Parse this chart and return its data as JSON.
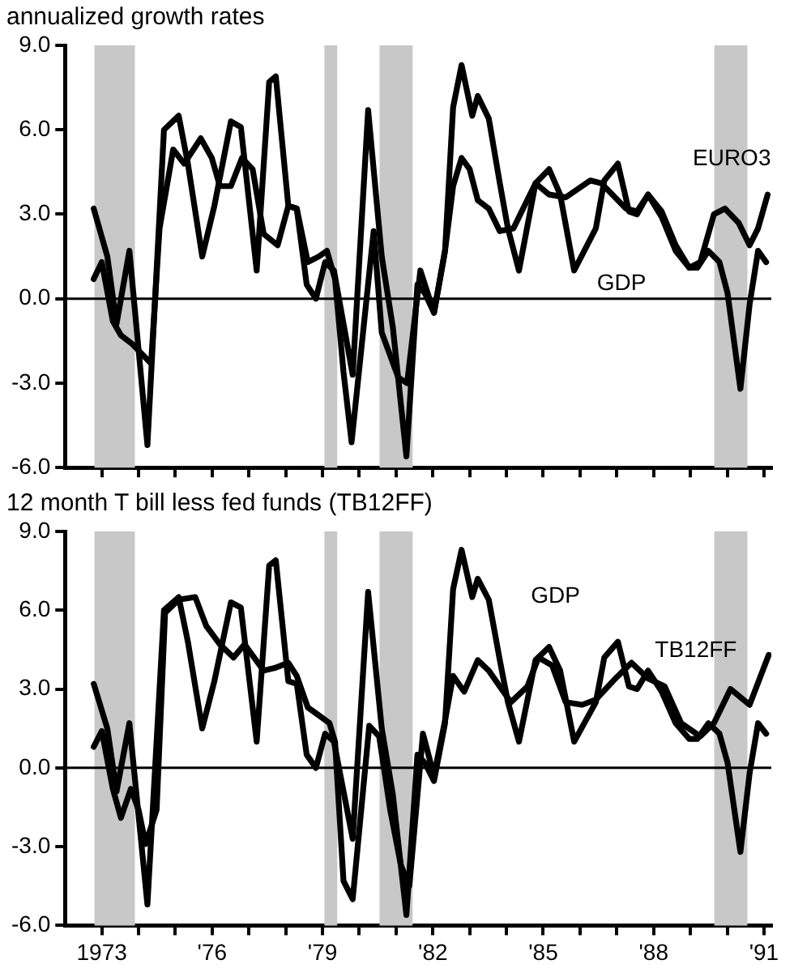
{
  "chart_data": [
    {
      "type": "line",
      "title": "annualized growth rates",
      "xlim": [
        1972,
        1991.2
      ],
      "ylim": [
        -6,
        9
      ],
      "xticks": [
        1973,
        1974,
        1975,
        1976,
        1977,
        1978,
        1979,
        1980,
        1981,
        1982,
        1983,
        1984,
        1985,
        1986,
        1987,
        1988,
        1989,
        1990,
        1991
      ],
      "yticks": [
        {
          "value": -6,
          "label": "-6.0"
        },
        {
          "value": -3,
          "label": "-3.0"
        },
        {
          "value": 0,
          "label": "0.0"
        },
        {
          "value": 3,
          "label": "3.0"
        },
        {
          "value": 6,
          "label": "6.0"
        },
        {
          "value": 9,
          "label": "9.0"
        }
      ],
      "tick_labels": "y",
      "ref_lines": [
        {
          "axis": "y",
          "value": 0,
          "color": "#000000"
        }
      ],
      "bands": [
        {
          "axis": "x",
          "from": 1972.8,
          "to": 1973.9,
          "color": "#c8c8c8"
        },
        {
          "axis": "x",
          "from": 1979.05,
          "to": 1979.4,
          "color": "#c8c8c8"
        },
        {
          "axis": "x",
          "from": 1980.55,
          "to": 1981.45,
          "color": "#c8c8c8"
        },
        {
          "axis": "x",
          "from": 1989.65,
          "to": 1990.55,
          "color": "#c8c8c8"
        }
      ],
      "series": [
        {
          "name": "GDP",
          "color": "#000000",
          "x": [
            1972.78,
            1973.15,
            1973.4,
            1973.75,
            1974.24,
            1974.69,
            1975.09,
            1975.34,
            1975.73,
            1976.06,
            1976.51,
            1976.78,
            1977.21,
            1977.55,
            1977.73,
            1978.07,
            1978.3,
            1978.57,
            1978.82,
            1979.07,
            1979.31,
            1979.82,
            1980.24,
            1980.61,
            1980.91,
            1981.28,
            1981.58,
            1981.78,
            1982.03,
            1982.33,
            1982.55,
            1982.78,
            1983.07,
            1983.22,
            1983.52,
            1983.82,
            1984.04,
            1984.34,
            1984.79,
            1985.16,
            1985.46,
            1985.84,
            1986.43,
            1986.66,
            1987.03,
            1987.33,
            1987.55,
            1987.85,
            1988.22,
            1988.6,
            1988.97,
            1989.19,
            1989.49,
            1989.79,
            1990.01,
            1990.36,
            1990.61,
            1990.84,
            1991.06
          ],
          "values": [
            3.2,
            1.5,
            -0.9,
            1.7,
            -5.2,
            6.0,
            6.5,
            4.8,
            1.5,
            3.3,
            6.3,
            6.1,
            1.0,
            7.7,
            7.9,
            3.3,
            3.2,
            0.5,
            0.0,
            1.3,
            1.0,
            -2.7,
            6.7,
            1.5,
            -1.0,
            -5.6,
            0.5,
            0.2,
            -0.5,
            1.7,
            6.8,
            8.3,
            6.5,
            7.2,
            6.4,
            4.1,
            2.5,
            1.0,
            4.1,
            4.6,
            3.7,
            1.0,
            2.5,
            4.2,
            4.8,
            3.1,
            3.0,
            3.7,
            2.9,
            1.7,
            1.1,
            1.1,
            1.7,
            1.3,
            0.2,
            -3.2,
            -0.2,
            1.7,
            1.3
          ]
        },
        {
          "name": "EURO3",
          "color": "#000000",
          "x": [
            1972.78,
            1973.0,
            1973.3,
            1973.52,
            1973.82,
            1974.34,
            1974.57,
            1974.94,
            1975.24,
            1975.69,
            1975.99,
            1976.21,
            1976.51,
            1976.81,
            1977.1,
            1977.4,
            1977.78,
            1978.07,
            1978.3,
            1978.6,
            1978.9,
            1979.12,
            1979.34,
            1979.57,
            1979.79,
            1980.39,
            1980.61,
            1981.06,
            1981.3,
            1981.66,
            1982.03,
            1982.33,
            1982.55,
            1982.78,
            1983.0,
            1983.22,
            1983.52,
            1983.82,
            1984.19,
            1984.79,
            1985.16,
            1985.61,
            1986.28,
            1986.58,
            1987.25,
            1987.55,
            1987.85,
            1988.22,
            1988.6,
            1988.97,
            1989.27,
            1989.64,
            1989.94,
            1990.31,
            1990.61,
            1990.84,
            1991.1
          ],
          "values": [
            0.7,
            1.3,
            -0.8,
            -1.3,
            -1.6,
            -2.3,
            2.5,
            5.3,
            4.8,
            5.7,
            5.0,
            4.0,
            4.0,
            5.0,
            4.6,
            2.3,
            1.9,
            3.3,
            3.2,
            1.3,
            1.5,
            1.7,
            0.7,
            -2.6,
            -5.1,
            2.4,
            -1.2,
            -2.8,
            -3.0,
            1.0,
            -0.5,
            1.7,
            4.0,
            5.0,
            4.6,
            3.5,
            3.2,
            2.4,
            2.5,
            4.1,
            3.7,
            3.6,
            4.2,
            4.1,
            3.2,
            3.1,
            3.7,
            3.1,
            1.9,
            1.1,
            1.3,
            3.0,
            3.2,
            2.7,
            1.9,
            2.5,
            3.7
          ]
        }
      ]
    },
    {
      "type": "line",
      "title": "12 month T bill less fed funds (TB12FF)",
      "xlim": [
        1972,
        1991.2
      ],
      "ylim": [
        -6,
        9
      ],
      "xticks": [
        1973,
        {
          "value": 1974,
          "label": null
        },
        {
          "value": 1975,
          "label": null
        },
        {
          "value": 1976,
          "label": "'76"
        },
        {
          "value": 1977,
          "label": null
        },
        {
          "value": 1978,
          "label": null
        },
        {
          "value": 1979,
          "label": "'79"
        },
        {
          "value": 1980,
          "label": null
        },
        {
          "value": 1981,
          "label": null
        },
        {
          "value": 1982,
          "label": "'82"
        },
        {
          "value": 1983,
          "label": null
        },
        {
          "value": 1984,
          "label": null
        },
        {
          "value": 1985,
          "label": "'85"
        },
        {
          "value": 1986,
          "label": null
        },
        {
          "value": 1987,
          "label": null
        },
        {
          "value": 1988,
          "label": "'88"
        },
        {
          "value": 1989,
          "label": null
        },
        {
          "value": 1990,
          "label": null
        },
        {
          "value": 1991,
          "label": "'91"
        }
      ],
      "yticks": [
        {
          "value": -6,
          "label": "-6.0"
        },
        {
          "value": -3,
          "label": "-3.0"
        },
        {
          "value": 0,
          "label": "0.0"
        },
        {
          "value": 3,
          "label": "3.0"
        },
        {
          "value": 6,
          "label": "6.0"
        },
        {
          "value": 9,
          "label": "9.0"
        }
      ],
      "ref_lines": [
        {
          "axis": "y",
          "value": 0,
          "color": "#000000"
        }
      ],
      "bands": [
        {
          "axis": "x",
          "from": 1972.8,
          "to": 1973.9,
          "color": "#c8c8c8"
        },
        {
          "axis": "x",
          "from": 1979.05,
          "to": 1979.4,
          "color": "#c8c8c8"
        },
        {
          "axis": "x",
          "from": 1980.55,
          "to": 1981.45,
          "color": "#c8c8c8"
        },
        {
          "axis": "x",
          "from": 1989.65,
          "to": 1990.55,
          "color": "#c8c8c8"
        }
      ],
      "series": [
        {
          "name": "GDP",
          "color": "#000000",
          "x": [
            1972.78,
            1973.15,
            1973.4,
            1973.75,
            1974.24,
            1974.69,
            1975.09,
            1975.34,
            1975.73,
            1976.06,
            1976.51,
            1976.78,
            1977.21,
            1977.55,
            1977.73,
            1978.07,
            1978.3,
            1978.57,
            1978.82,
            1979.07,
            1979.31,
            1979.82,
            1980.24,
            1980.61,
            1980.91,
            1981.28,
            1981.58,
            1981.78,
            1982.03,
            1982.33,
            1982.55,
            1982.78,
            1983.07,
            1983.22,
            1983.52,
            1983.82,
            1984.04,
            1984.34,
            1984.79,
            1985.16,
            1985.46,
            1985.84,
            1986.43,
            1986.66,
            1987.03,
            1987.33,
            1987.55,
            1987.85,
            1988.22,
            1988.6,
            1988.97,
            1989.19,
            1989.49,
            1989.79,
            1990.01,
            1990.36,
            1990.61,
            1990.84,
            1991.06
          ],
          "values": [
            3.2,
            1.5,
            -0.9,
            1.7,
            -5.2,
            6.0,
            6.5,
            4.8,
            1.5,
            3.3,
            6.3,
            6.1,
            1.0,
            7.7,
            7.9,
            3.3,
            3.2,
            0.5,
            0.0,
            1.3,
            1.0,
            -2.7,
            6.7,
            1.5,
            -1.0,
            -5.6,
            0.5,
            0.2,
            -0.5,
            1.7,
            6.8,
            8.3,
            6.5,
            7.2,
            6.4,
            4.1,
            2.5,
            1.0,
            4.1,
            4.6,
            3.7,
            1.0,
            2.5,
            4.2,
            4.8,
            3.1,
            3.0,
            3.7,
            2.9,
            1.7,
            1.1,
            1.1,
            1.7,
            1.3,
            0.2,
            -3.2,
            -0.2,
            1.7,
            1.3
          ]
        },
        {
          "name": "TB12FF",
          "color": "#000000",
          "x": [
            1972.78,
            1973.0,
            1973.3,
            1973.52,
            1973.79,
            1974.0,
            1974.19,
            1974.49,
            1974.72,
            1975.09,
            1975.54,
            1975.84,
            1976.21,
            1976.58,
            1976.88,
            1977.4,
            1977.7,
            1978.07,
            1978.3,
            1978.6,
            1978.9,
            1979.19,
            1979.34,
            1979.57,
            1979.82,
            1980.27,
            1980.54,
            1980.84,
            1981.13,
            1981.36,
            1981.73,
            1982.03,
            1982.33,
            1982.55,
            1982.85,
            1983.22,
            1983.52,
            1983.82,
            1984.12,
            1984.57,
            1984.87,
            1985.24,
            1985.61,
            1986.06,
            1986.43,
            1986.96,
            1987.4,
            1987.85,
            1988.3,
            1988.75,
            1989.27,
            1989.64,
            1990.09,
            1990.61,
            1991.13
          ],
          "values": [
            0.8,
            1.4,
            -0.8,
            -1.9,
            -0.8,
            -1.6,
            -2.9,
            -1.6,
            5.9,
            6.4,
            6.5,
            5.4,
            4.7,
            4.2,
            4.7,
            3.7,
            3.8,
            4.0,
            3.5,
            2.3,
            2.0,
            1.7,
            1.0,
            -4.3,
            -5.0,
            1.6,
            1.2,
            -1.6,
            -3.7,
            -4.5,
            1.3,
            -0.3,
            1.8,
            3.5,
            2.9,
            4.1,
            3.7,
            3.1,
            2.5,
            3.1,
            4.2,
            3.9,
            2.5,
            2.4,
            2.6,
            3.4,
            4.0,
            3.4,
            3.1,
            1.7,
            1.2,
            1.7,
            3.0,
            2.4,
            4.3
          ]
        }
      ]
    }
  ]
}
